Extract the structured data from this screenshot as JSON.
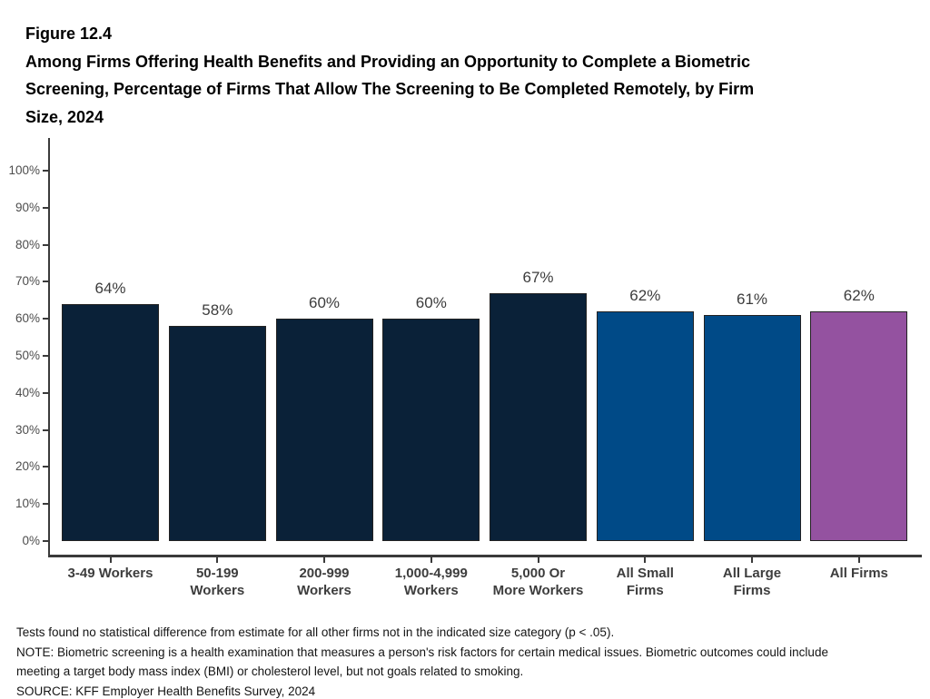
{
  "figure_label": "Figure 12.4",
  "title_lines": [
    "Among Firms Offering Health Benefits and Providing an Opportunity to Complete a Biometric",
    "Screening, Percentage of Firms That Allow The Screening to Be Completed Remotely, by Firm",
    "Size, 2024"
  ],
  "chart_data": {
    "type": "bar",
    "title": "Among Firms Offering Health Benefits and Providing an Opportunity to Complete a Biometric Screening, Percentage of Firms That Allow The Screening to Be Completed Remotely, by Firm Size, 2024",
    "categories": [
      "3-49 Workers",
      "50-199 Workers",
      "200-999 Workers",
      "1,000-4,999 Workers",
      "5,000 Or More Workers",
      "All Small Firms",
      "All Large Firms",
      "All Firms"
    ],
    "category_lines": [
      [
        "3-49 Workers"
      ],
      [
        "50-199",
        "Workers"
      ],
      [
        "200-999",
        "Workers"
      ],
      [
        "1,000-4,999",
        "Workers"
      ],
      [
        "5,000 Or",
        "More Workers"
      ],
      [
        "All Small",
        "Firms"
      ],
      [
        "All Large",
        "Firms"
      ],
      [
        "All Firms"
      ]
    ],
    "values": [
      64,
      58,
      60,
      60,
      67,
      62,
      61,
      62
    ],
    "labels": [
      "64%",
      "58%",
      "60%",
      "60%",
      "67%",
      "62%",
      "61%",
      "62%"
    ],
    "bar_colors": [
      "#0a2138",
      "#0a2138",
      "#0a2138",
      "#0a2138",
      "#0a2138",
      "#004a87",
      "#004a87",
      "#9452a0"
    ],
    "bar_border_color": "#222222",
    "xlabel": "",
    "ylabel": "",
    "ylim": [
      0,
      100
    ],
    "ytick_labels": [
      "0%",
      "10%",
      "20%",
      "30%",
      "40%",
      "50%",
      "60%",
      "70%",
      "80%",
      "90%",
      "100%"
    ],
    "grid": false,
    "legend": null
  },
  "footnotes": [
    "Tests found no statistical difference from estimate for all other firms not in the indicated size category (p < .05).",
    "NOTE: Biometric screening is a health examination that measures a person's risk factors for certain medical issues. Biometric outcomes could include",
    "meeting a target body mass index (BMI) or cholesterol level, but not goals related to smoking.",
    "SOURCE: KFF Employer Health Benefits Survey, 2024"
  ],
  "colors": {
    "dark_navy": "#0a2138",
    "medium_blue": "#004a87",
    "purple": "#9452a0",
    "axis": "#3a3a3a",
    "ytick_label": "#4d4d4d",
    "value_label": "#3c3c3c",
    "category_label": "#3d3d3d"
  }
}
